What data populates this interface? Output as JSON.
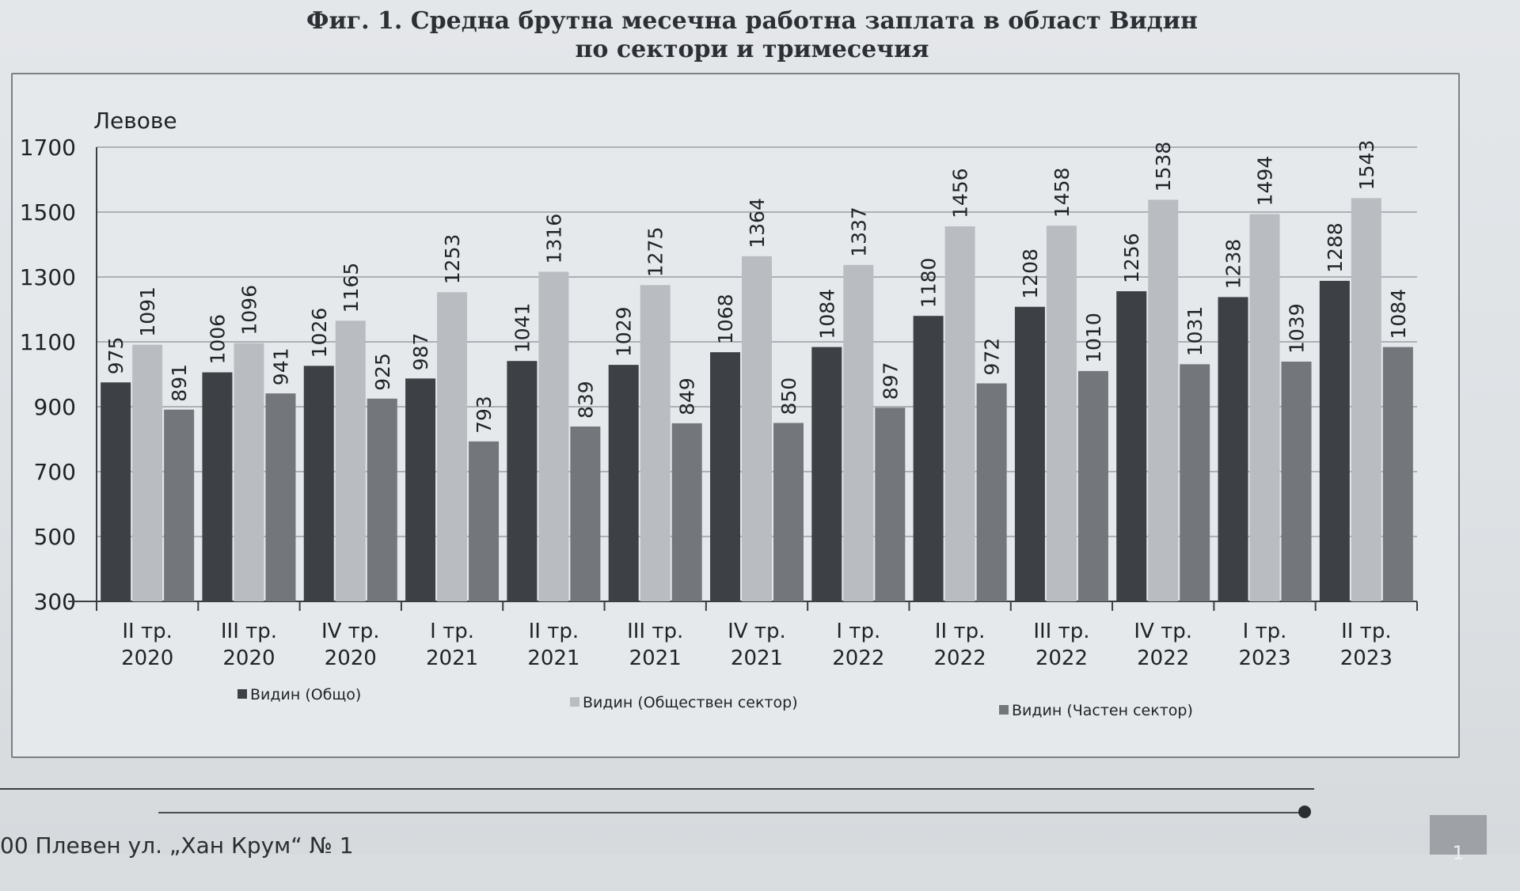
{
  "chart_data": {
    "type": "bar",
    "title_line1": "Фиг. 1. Средна брутна месечна работна заплата в област Видин",
    "title_line2": "по сектори и тримесечия",
    "ylabel": "Левове",
    "ylim": [
      300,
      1700
    ],
    "yticks": [
      300,
      500,
      700,
      900,
      1100,
      1300,
      1500,
      1700
    ],
    "ytick_labels": [
      "300",
      "500",
      "700",
      "900",
      "1100",
      "1300",
      "1500",
      "1700"
    ],
    "categories": [
      [
        "II тр.",
        "2020"
      ],
      [
        "III тр.",
        "2020"
      ],
      [
        "IV тр.",
        "2020"
      ],
      [
        "I тр.",
        "2021"
      ],
      [
        "II тр.",
        "2021"
      ],
      [
        "III тр.",
        "2021"
      ],
      [
        "IV тр.",
        "2021"
      ],
      [
        "I тр.",
        "2022"
      ],
      [
        "II тр.",
        "2022"
      ],
      [
        "III тр.",
        "2022"
      ],
      [
        "IV тр.",
        "2022"
      ],
      [
        "I тр.",
        "2023"
      ],
      [
        "II тр.",
        "2023"
      ]
    ],
    "series": [
      {
        "name": "Видин  (Общо)",
        "color": "#3d4145",
        "values": [
          975,
          1006,
          1026,
          987,
          1041,
          1029,
          1068,
          1084,
          1180,
          1208,
          1256,
          1238,
          1288
        ]
      },
      {
        "name": "Видин  (Обществен сектор)",
        "color": "#b9bdc1",
        "values": [
          1091,
          1096,
          1165,
          1253,
          1316,
          1275,
          1364,
          1337,
          1456,
          1458,
          1538,
          1494,
          1543
        ]
      },
      {
        "name": "Видин  (Частен сектор)",
        "color": "#73777b",
        "values": [
          891,
          941,
          925,
          793,
          839,
          849,
          850,
          897,
          972,
          1010,
          1031,
          1039,
          1084
        ]
      }
    ],
    "grid": true,
    "legend": "bottom"
  },
  "footer": {
    "address_text": "00 Плевен  ул. „Хан Крум“ № 1",
    "page_number": "1"
  }
}
